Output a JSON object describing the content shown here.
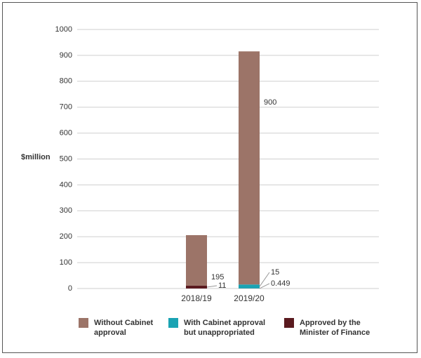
{
  "chart_data": {
    "type": "stacked_bar",
    "y_label": "$million",
    "categories": [
      "2018/19",
      "2019/20"
    ],
    "series": [
      {
        "name": "Approved by the Minister of Finance",
        "color": "#5a1a1f",
        "values": [
          11,
          0.449
        ]
      },
      {
        "name": "With Cabinet approval but unappropriated",
        "color": "#1aa3b3",
        "values": [
          null,
          15
        ]
      },
      {
        "name": "Without Cabinet approval",
        "color": "#9c7468",
        "values": [
          195,
          900
        ]
      }
    ],
    "legend_order": [
      2,
      1,
      0
    ],
    "ylim": [
      0,
      1000
    ],
    "yticks": [
      0,
      100,
      200,
      300,
      400,
      500,
      600,
      700,
      800,
      900,
      1000
    ],
    "grid": true
  }
}
